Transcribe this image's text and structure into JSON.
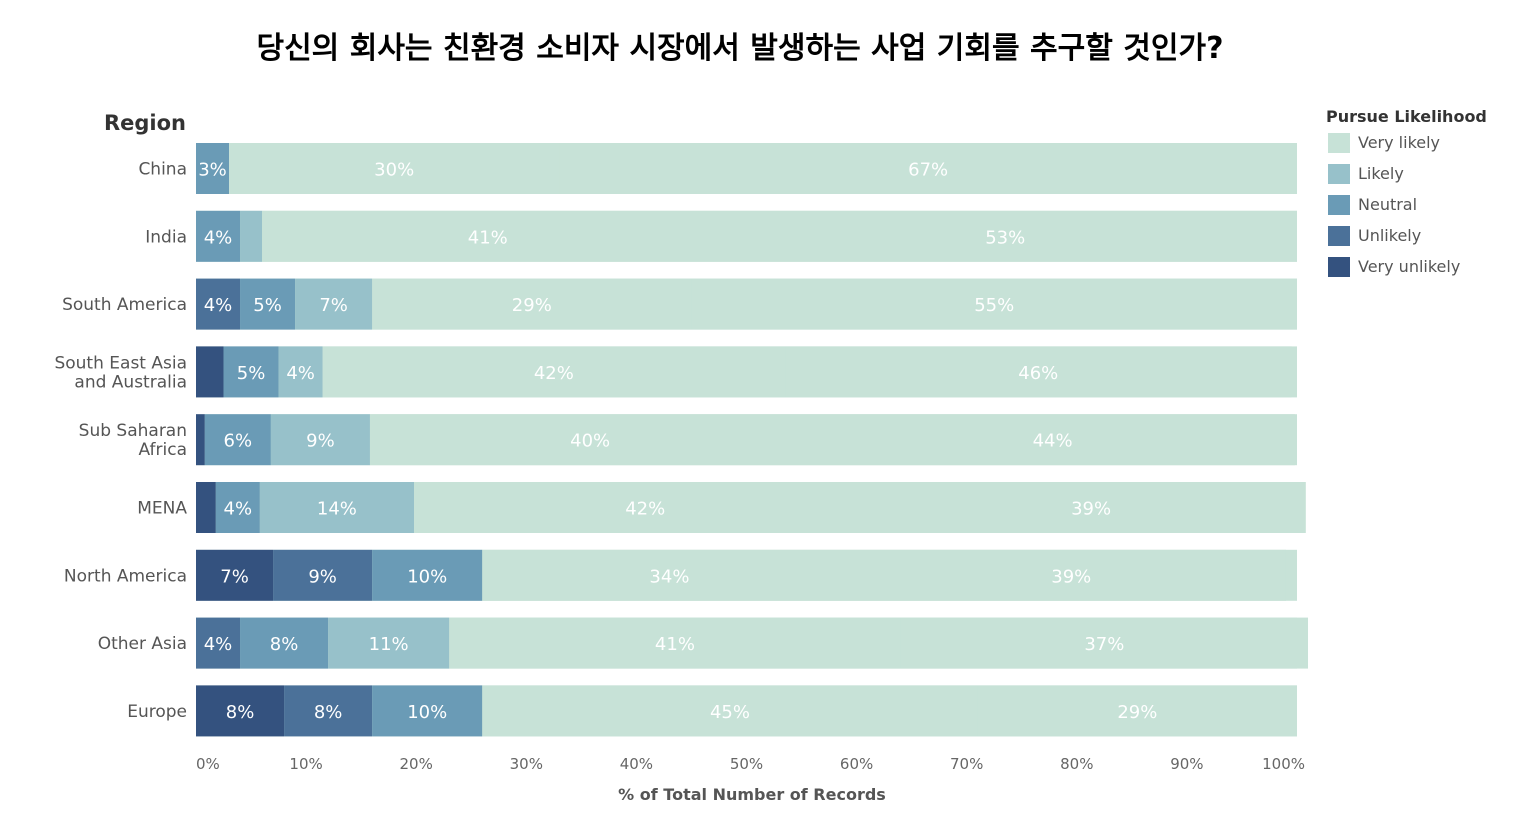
{
  "chart_data": {
    "type": "bar",
    "orientation": "horizontal",
    "stacked": true,
    "title": "당신의 회사는 친환경 소비자 시장에서 발생하는 사업 기회를 추구할 것인가?",
    "category_header": "Region",
    "xlabel": "% of Total Number of Records",
    "xlim": [
      0,
      100
    ],
    "x_ticks": [
      "0%",
      "10%",
      "20%",
      "30%",
      "40%",
      "50%",
      "60%",
      "70%",
      "80%",
      "90%",
      "100%"
    ],
    "grid": false,
    "legend": {
      "title": "Pursue Likelihood",
      "position": "right"
    },
    "categories": [
      "China",
      "India",
      "South America",
      "South East Asia and Australia",
      "Sub Saharan Africa",
      "MENA",
      "North America",
      "Other Asia",
      "Europe"
    ],
    "category_lines": [
      [
        "China"
      ],
      [
        "India"
      ],
      [
        "South America"
      ],
      [
        "South East Asia",
        "and Australia"
      ],
      [
        "Sub Saharan",
        "Africa"
      ],
      [
        "MENA"
      ],
      [
        "North America"
      ],
      [
        "Other Asia"
      ],
      [
        "Europe"
      ]
    ],
    "series": [
      {
        "name": "Very unlikely",
        "color": "#34527f",
        "values": [
          0,
          0,
          0,
          2.5,
          0.8,
          1.8,
          7,
          0,
          8
        ],
        "labels": [
          "",
          "",
          "",
          "",
          "",
          "",
          "7%",
          "",
          "8%"
        ]
      },
      {
        "name": "Unlikely",
        "color": "#4b7199",
        "values": [
          0,
          0,
          4,
          0,
          0,
          0,
          9,
          4,
          8
        ],
        "labels": [
          "",
          "",
          "4%",
          "",
          "",
          "",
          "9%",
          "4%",
          "8%"
        ]
      },
      {
        "name": "Neutral",
        "color": "#6a9bb6",
        "values": [
          3,
          4,
          5,
          5,
          6,
          4,
          10,
          8,
          10
        ],
        "labels": [
          "3%",
          "4%",
          "5%",
          "5%",
          "6%",
          "4%",
          "10%",
          "8%",
          "10%"
        ]
      },
      {
        "name": "Likely",
        "color": "#97c1ca",
        "values": [
          0,
          2,
          7,
          4,
          9,
          14,
          0,
          11,
          0
        ],
        "labels": [
          "",
          "",
          "7%",
          "4%",
          "9%",
          "14%",
          "",
          "11%",
          ""
        ]
      },
      {
        "name": "Very likely",
        "color": "#c7e2d7",
        "values": [
          30,
          41,
          29,
          42,
          40,
          42,
          34,
          41,
          45
        ],
        "labels": [
          "30%",
          "41%",
          "29%",
          "42%",
          "40%",
          "42%",
          "34%",
          "41%",
          "45%"
        ]
      },
      {
        "name": "",
        "color": "#c7e2d7",
        "values": [
          67,
          53,
          55,
          46,
          44,
          39,
          39,
          37,
          29
        ],
        "labels": [
          "67%",
          "53%",
          "55%",
          "46%",
          "44%",
          "39%",
          "39%",
          "37%",
          "29%"
        ]
      }
    ],
    "legend_items": [
      {
        "name": "Very likely",
        "color": "#c7e2d7"
      },
      {
        "name": "Likely",
        "color": "#97c1ca"
      },
      {
        "name": "Neutral",
        "color": "#6a9bb6"
      },
      {
        "name": "Unlikely",
        "color": "#4b7199"
      },
      {
        "name": "Very unlikely",
        "color": "#34527f"
      }
    ]
  }
}
